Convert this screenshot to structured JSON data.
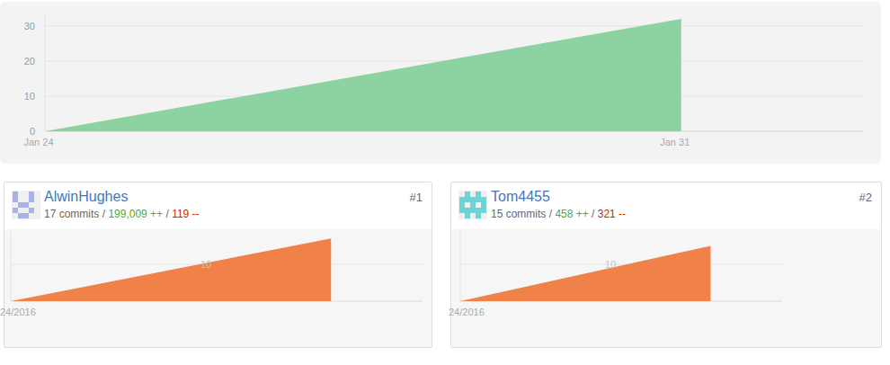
{
  "chart_data": [
    {
      "type": "area",
      "x": [
        24,
        31
      ],
      "values": [
        0,
        32
      ],
      "color": "#8cd3a1",
      "xlim": [
        24,
        33
      ],
      "ylim": [
        0,
        33
      ],
      "xticks": [
        {
          "value": 24,
          "label": "Jan 24"
        },
        {
          "value": 31,
          "label": "Jan 31"
        }
      ],
      "yticks": [
        0,
        10,
        20,
        30
      ],
      "grid": true
    },
    {
      "type": "area",
      "title": "AlwinHughes",
      "rank": "#1",
      "commits": "17 commits",
      "separator": "/",
      "additions": "199,009 ++",
      "deletions": "119 --",
      "x": [
        24,
        31
      ],
      "values": [
        0,
        17
      ],
      "color": "#f08149",
      "xlim": [
        24,
        33
      ],
      "ylim": [
        0,
        19
      ],
      "xticks": [
        {
          "value": 24,
          "label": "24/2016"
        }
      ],
      "yticks": [
        10
      ],
      "grid": true
    },
    {
      "type": "area",
      "title": "Tom4455",
      "rank": "#2",
      "commits": "15 commits",
      "separator": "/",
      "additions": "458 ++",
      "deletions": "321 --",
      "x": [
        24,
        31
      ],
      "values": [
        0,
        15
      ],
      "color": "#f08149",
      "xlim": [
        24,
        33
      ],
      "ylim": [
        0,
        19
      ],
      "xticks": [
        {
          "value": 24,
          "label": "24/2016"
        }
      ],
      "yticks": [
        10
      ],
      "grid": true
    }
  ]
}
